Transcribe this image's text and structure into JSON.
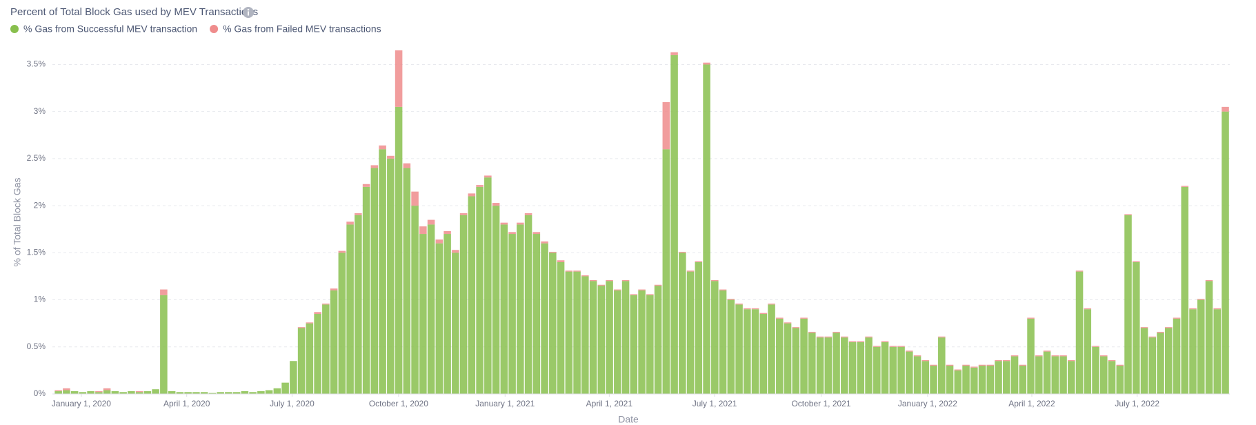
{
  "chart_data": {
    "type": "stacked-bar",
    "title": "Percent of Total Block Gas used by MEV Transactions",
    "x_label": "Date",
    "y_label": "% of Total Block Gas",
    "x": [
      "2019-12-09",
      "2019-12-16",
      "2019-12-23",
      "2019-12-30",
      "2020-01-06",
      "2020-01-13",
      "2020-01-20",
      "2020-01-27",
      "2020-02-03",
      "2020-02-10",
      "2020-02-17",
      "2020-02-24",
      "2020-03-02",
      "2020-03-09",
      "2020-03-16",
      "2020-03-23",
      "2020-03-30",
      "2020-04-06",
      "2020-04-13",
      "2020-04-20",
      "2020-04-27",
      "2020-05-04",
      "2020-05-11",
      "2020-05-18",
      "2020-05-25",
      "2020-06-01",
      "2020-06-08",
      "2020-06-15",
      "2020-06-22",
      "2020-06-29",
      "2020-07-06",
      "2020-07-13",
      "2020-07-20",
      "2020-07-27",
      "2020-08-03",
      "2020-08-10",
      "2020-08-17",
      "2020-08-24",
      "2020-08-31",
      "2020-09-07",
      "2020-09-14",
      "2020-09-21",
      "2020-09-28",
      "2020-10-05",
      "2020-10-12",
      "2020-10-19",
      "2020-10-26",
      "2020-11-02",
      "2020-11-09",
      "2020-11-16",
      "2020-11-23",
      "2020-11-30",
      "2020-12-07",
      "2020-12-14",
      "2020-12-21",
      "2020-12-28",
      "2021-01-04",
      "2021-01-11",
      "2021-01-18",
      "2021-01-25",
      "2021-02-01",
      "2021-02-08",
      "2021-02-15",
      "2021-02-22",
      "2021-03-01",
      "2021-03-08",
      "2021-03-15",
      "2021-03-22",
      "2021-03-29",
      "2021-04-05",
      "2021-04-12",
      "2021-04-19",
      "2021-04-26",
      "2021-05-03",
      "2021-05-10",
      "2021-05-17",
      "2021-05-24",
      "2021-05-31",
      "2021-06-07",
      "2021-06-14",
      "2021-06-21",
      "2021-06-28",
      "2021-07-05",
      "2021-07-12",
      "2021-07-19",
      "2021-07-26",
      "2021-08-02",
      "2021-08-09",
      "2021-08-16",
      "2021-08-23",
      "2021-08-30",
      "2021-09-06",
      "2021-09-13",
      "2021-09-20",
      "2021-09-27",
      "2021-10-04",
      "2021-10-11",
      "2021-10-18",
      "2021-10-25",
      "2021-11-01",
      "2021-11-08",
      "2021-11-15",
      "2021-11-22",
      "2021-11-29",
      "2021-12-06",
      "2021-12-13",
      "2021-12-20",
      "2021-12-27",
      "2022-01-03",
      "2022-01-10",
      "2022-01-17",
      "2022-01-24",
      "2022-01-31",
      "2022-02-07",
      "2022-02-14",
      "2022-02-21",
      "2022-02-28",
      "2022-03-07",
      "2022-03-14",
      "2022-03-21",
      "2022-03-28",
      "2022-04-04",
      "2022-04-11",
      "2022-04-18",
      "2022-04-25",
      "2022-05-02",
      "2022-05-09",
      "2022-05-16",
      "2022-05-23",
      "2022-05-30",
      "2022-06-06",
      "2022-06-13",
      "2022-06-20",
      "2022-06-27",
      "2022-07-04",
      "2022-07-11",
      "2022-07-18",
      "2022-07-25",
      "2022-08-01",
      "2022-08-08",
      "2022-08-15",
      "2022-08-22",
      "2022-08-29",
      "2022-09-05",
      "2022-09-12"
    ],
    "series": [
      {
        "name": "% Gas from Successful MEV transaction",
        "color": "#88bf4d",
        "values": [
          0.03,
          0.04,
          0.03,
          0.02,
          0.03,
          0.02,
          0.04,
          0.03,
          0.02,
          0.03,
          0.02,
          0.03,
          0.05,
          1.05,
          0.03,
          0.02,
          0.02,
          0.02,
          0.02,
          0.01,
          0.02,
          0.02,
          0.02,
          0.03,
          0.02,
          0.03,
          0.04,
          0.06,
          0.12,
          0.35,
          0.7,
          0.75,
          0.85,
          0.95,
          1.1,
          1.5,
          1.8,
          1.9,
          2.2,
          2.4,
          2.6,
          2.5,
          3.05,
          2.4,
          2.0,
          1.7,
          1.8,
          1.6,
          1.7,
          1.5,
          1.9,
          2.1,
          2.2,
          2.3,
          2.0,
          1.8,
          1.7,
          1.8,
          1.9,
          1.7,
          1.6,
          1.5,
          1.4,
          1.3,
          1.3,
          1.25,
          1.2,
          1.15,
          1.2,
          1.1,
          1.2,
          1.05,
          1.1,
          1.05,
          1.15,
          2.6,
          3.6,
          1.5,
          1.3,
          1.4,
          3.5,
          1.2,
          1.1,
          1.0,
          0.95,
          0.9,
          0.9,
          0.85,
          0.95,
          0.8,
          0.75,
          0.7,
          0.8,
          0.65,
          0.6,
          0.6,
          0.65,
          0.6,
          0.55,
          0.55,
          0.6,
          0.5,
          0.55,
          0.5,
          0.5,
          0.45,
          0.4,
          0.35,
          0.3,
          0.6,
          0.3,
          0.25,
          0.3,
          0.28,
          0.3,
          0.3,
          0.35,
          0.35,
          0.4,
          0.3,
          0.8,
          0.4,
          0.45,
          0.4,
          0.4,
          0.35,
          1.3,
          0.9,
          0.5,
          0.4,
          0.35,
          0.3,
          1.9,
          1.4,
          0.7,
          0.6,
          0.65,
          0.7,
          0.8,
          2.2,
          0.9,
          1.0,
          1.2,
          0.9,
          3.0
        ]
      },
      {
        "name": "% Gas from Failed MEV transactions",
        "color": "#ef8c8c",
        "values": [
          0.01,
          0.02,
          0,
          0,
          0,
          0.01,
          0.02,
          0,
          0,
          0,
          0.01,
          0,
          0,
          0.06,
          0,
          0,
          0,
          0,
          0,
          0,
          0,
          0,
          0,
          0,
          0,
          0,
          0,
          0,
          0,
          0,
          0.01,
          0.01,
          0.02,
          0.01,
          0.02,
          0.02,
          0.03,
          0.02,
          0.03,
          0.03,
          0.04,
          0.03,
          0.6,
          0.05,
          0.15,
          0.08,
          0.05,
          0.04,
          0.03,
          0.03,
          0.02,
          0.03,
          0.02,
          0.02,
          0.03,
          0.02,
          0.02,
          0.02,
          0.02,
          0.02,
          0.02,
          0.01,
          0.02,
          0.01,
          0.01,
          0.01,
          0.01,
          0.01,
          0.01,
          0.01,
          0.01,
          0.01,
          0.01,
          0.01,
          0.01,
          0.5,
          0.03,
          0.01,
          0.01,
          0.01,
          0.02,
          0.01,
          0.01,
          0.01,
          0.01,
          0.01,
          0.01,
          0.01,
          0.01,
          0.01,
          0.01,
          0.01,
          0.01,
          0.01,
          0.01,
          0.01,
          0.01,
          0.01,
          0.01,
          0.01,
          0.01,
          0.01,
          0.01,
          0.01,
          0.01,
          0.01,
          0.01,
          0.01,
          0.01,
          0.01,
          0.01,
          0.01,
          0.01,
          0.01,
          0.01,
          0.01,
          0.01,
          0.01,
          0.01,
          0.01,
          0.01,
          0.01,
          0.01,
          0.01,
          0.01,
          0.01,
          0.01,
          0.01,
          0.01,
          0.01,
          0.01,
          0.01,
          0.01,
          0.01,
          0.01,
          0.01,
          0.01,
          0.01,
          0.01,
          0.01,
          0.01,
          0.01,
          0.01,
          0.01,
          0.05
        ]
      }
    ],
    "xlim": [
      "2019-12-07",
      "2022-09-19"
    ],
    "xticks": [
      {
        "value": "2020-01-01",
        "label": "January 1, 2020"
      },
      {
        "value": "2020-04-01",
        "label": "April 1, 2020"
      },
      {
        "value": "2020-07-01",
        "label": "July 1, 2020"
      },
      {
        "value": "2020-10-01",
        "label": "October 1, 2020"
      },
      {
        "value": "2021-01-01",
        "label": "January 1, 2021"
      },
      {
        "value": "2021-04-01",
        "label": "April 1, 2021"
      },
      {
        "value": "2021-07-01",
        "label": "July 1, 2021"
      },
      {
        "value": "2021-10-01",
        "label": "October 1, 2021"
      },
      {
        "value": "2022-01-01",
        "label": "January 1, 2022"
      },
      {
        "value": "2022-04-01",
        "label": "April 1, 2022"
      },
      {
        "value": "2022-07-01",
        "label": "July 1, 2022"
      }
    ],
    "ylim": [
      0,
      3.65
    ],
    "yticks": [
      {
        "value": 0,
        "label": "0%"
      },
      {
        "value": 0.5,
        "label": "0.5%"
      },
      {
        "value": 1,
        "label": "1%"
      },
      {
        "value": 1.5,
        "label": "1.5%"
      },
      {
        "value": 2,
        "label": "2%"
      },
      {
        "value": 2.5,
        "label": "2.5%"
      },
      {
        "value": 3,
        "label": "3%"
      },
      {
        "value": 3.5,
        "label": "3.5%"
      }
    ],
    "grid": true,
    "legend": "top-left"
  }
}
